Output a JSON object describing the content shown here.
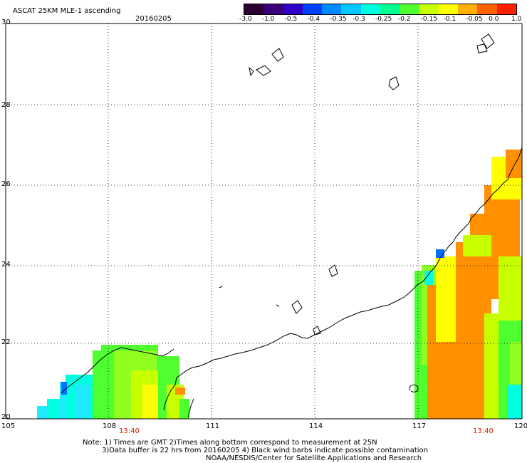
{
  "header": {
    "title": "ASCAT 25KM MLE-1 ascending",
    "date": "20160205"
  },
  "colorbar": {
    "labels": [
      "-3.0",
      "-1.0",
      "-0.5",
      "-0.4",
      "-0.35",
      "-0.3",
      "-0.25",
      "-0.2",
      "-0.15",
      "-0.1",
      "-0.05",
      "0.0",
      "1.0"
    ],
    "colors": [
      "#2a0030",
      "#3a007a",
      "#3000c8",
      "#0040ff",
      "#0088ff",
      "#00c8ff",
      "#00ffe0",
      "#00ff90",
      "#50ff30",
      "#c8ff00",
      "#ffff00",
      "#ffb000",
      "#ff6000",
      "#ff2000"
    ]
  },
  "axes": {
    "x_ticks": [
      "105",
      "108",
      "111",
      "114",
      "117",
      "120"
    ],
    "y_ticks": [
      "30",
      "28",
      "26",
      "24",
      "22",
      "20"
    ]
  },
  "pass_times": {
    "left": "13:40",
    "right": "13:40"
  },
  "footer": {
    "line1": "Note: 1) Times are GMT 2)Times along bottom correspond to measurement at 25N",
    "line2": "3)Data buffer is 22 hrs from 20160205 4) Black wind barbs indicate possible contamination",
    "line3": "NOAA/NESDIS/Center for Satellite Applications and Research"
  }
}
